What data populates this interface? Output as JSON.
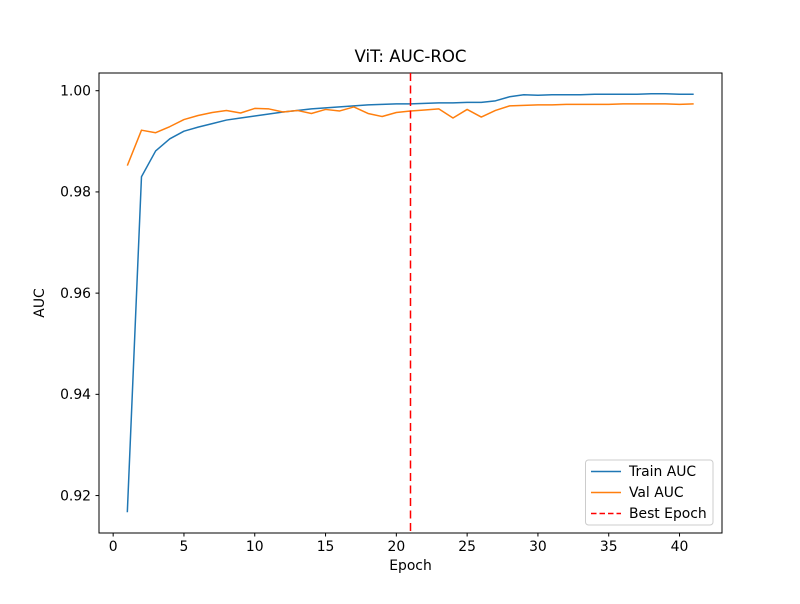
{
  "figure": {
    "background_color": "#ffffff",
    "text_color": "#000000",
    "spine_color": "#000000",
    "legend_border_color": "#cccccc"
  },
  "chart_data": {
    "type": "line",
    "title": "ViT: AUC-ROC",
    "xlabel": "Epoch",
    "ylabel": "AUC",
    "xlim": [
      -1,
      43
    ],
    "ylim": [
      0.9126,
      1.0035
    ],
    "grid": false,
    "legend_position": "lower right",
    "xticks": {
      "values": [
        0,
        5,
        10,
        15,
        20,
        25,
        30,
        35,
        40
      ],
      "labels": [
        "0",
        "5",
        "10",
        "15",
        "20",
        "25",
        "30",
        "35",
        "40"
      ]
    },
    "yticks": {
      "values": [
        0.92,
        0.94,
        0.96,
        0.98,
        1.0
      ],
      "labels": [
        "0.92",
        "0.94",
        "0.96",
        "0.98",
        "1.00"
      ]
    },
    "x": [
      1,
      2,
      3,
      4,
      5,
      6,
      7,
      8,
      9,
      10,
      11,
      12,
      13,
      14,
      15,
      16,
      17,
      18,
      19,
      20,
      21,
      22,
      23,
      24,
      25,
      26,
      27,
      28,
      29,
      30,
      31,
      32,
      33,
      34,
      35,
      36,
      37,
      38,
      39,
      40,
      41
    ],
    "series": [
      {
        "name": "Train AUC",
        "color": "#1f77b4",
        "style": "solid",
        "values": [
          0.9167,
          0.983,
          0.9881,
          0.9905,
          0.992,
          0.9928,
          0.9935,
          0.9942,
          0.9946,
          0.995,
          0.9954,
          0.9958,
          0.9961,
          0.9964,
          0.9966,
          0.9968,
          0.997,
          0.9972,
          0.9973,
          0.9974,
          0.9974,
          0.9975,
          0.9976,
          0.9976,
          0.9977,
          0.9977,
          0.998,
          0.9988,
          0.9992,
          0.9991,
          0.9992,
          0.9992,
          0.9992,
          0.9993,
          0.9993,
          0.9993,
          0.9993,
          0.9994,
          0.9994,
          0.9993,
          0.9993
        ]
      },
      {
        "name": "Val AUC",
        "color": "#ff7f0e",
        "style": "solid",
        "values": [
          0.9852,
          0.9922,
          0.9917,
          0.9929,
          0.9943,
          0.9951,
          0.9957,
          0.9961,
          0.9956,
          0.9965,
          0.9964,
          0.9958,
          0.9961,
          0.9955,
          0.9963,
          0.996,
          0.9968,
          0.9955,
          0.9949,
          0.9957,
          0.996,
          0.9962,
          0.9964,
          0.9946,
          0.9963,
          0.9948,
          0.9961,
          0.997,
          0.9971,
          0.9972,
          0.9972,
          0.9973,
          0.9973,
          0.9973,
          0.9973,
          0.9974,
          0.9974,
          0.9974,
          0.9974,
          0.9973,
          0.9974
        ]
      }
    ],
    "vline": {
      "label": "Best Epoch",
      "x": 21,
      "color": "#ff0000",
      "style": "dashed"
    }
  }
}
